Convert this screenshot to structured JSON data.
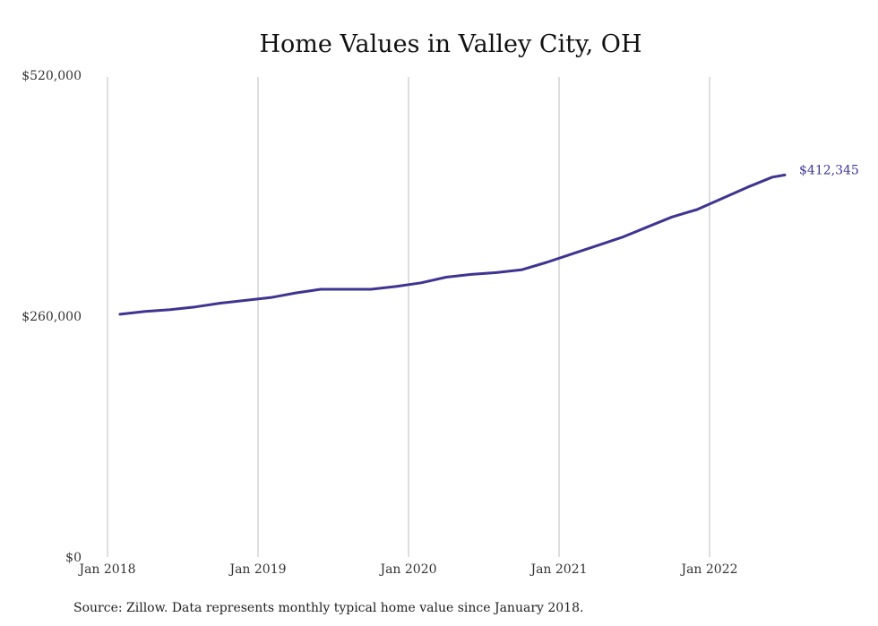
{
  "chart_data": {
    "type": "line",
    "title": "Home Values in Valley City, OH",
    "xlabel": "",
    "ylabel": "",
    "ylim": [
      0,
      520000
    ],
    "y_ticks": [
      {
        "value": 0,
        "label": "$0"
      },
      {
        "value": 260000,
        "label": "$260,000"
      },
      {
        "value": 520000,
        "label": "$520,000"
      }
    ],
    "x_ticks": [
      {
        "value": "2018-01",
        "label": "Jan 2018"
      },
      {
        "value": "2019-01",
        "label": "Jan 2019"
      },
      {
        "value": "2020-01",
        "label": "Jan 2020"
      },
      {
        "value": "2021-01",
        "label": "Jan 2021"
      },
      {
        "value": "2022-01",
        "label": "Jan 2022"
      }
    ],
    "grid": "vertical",
    "series": [
      {
        "color": "#3d3591",
        "x": [
          "2018-02",
          "2018-04",
          "2018-06",
          "2018-08",
          "2018-10",
          "2018-12",
          "2019-02",
          "2019-04",
          "2019-06",
          "2019-08",
          "2019-10",
          "2019-12",
          "2020-02",
          "2020-04",
          "2020-06",
          "2020-08",
          "2020-10",
          "2020-12",
          "2021-02",
          "2021-04",
          "2021-06",
          "2021-08",
          "2021-10",
          "2021-12",
          "2022-02",
          "2022-04",
          "2022-06",
          "2022-07"
        ],
        "values": [
          262000,
          265000,
          267000,
          270000,
          274000,
          277000,
          280000,
          285000,
          289000,
          289000,
          289000,
          292000,
          296000,
          302000,
          305000,
          307000,
          310000,
          318000,
          327000,
          336000,
          345000,
          356000,
          367000,
          375000,
          387000,
          399000,
          410000,
          412345
        ]
      }
    ],
    "end_label": "$412,345",
    "source": "Source: Zillow. Data represents monthly typical home value since January 2018."
  }
}
